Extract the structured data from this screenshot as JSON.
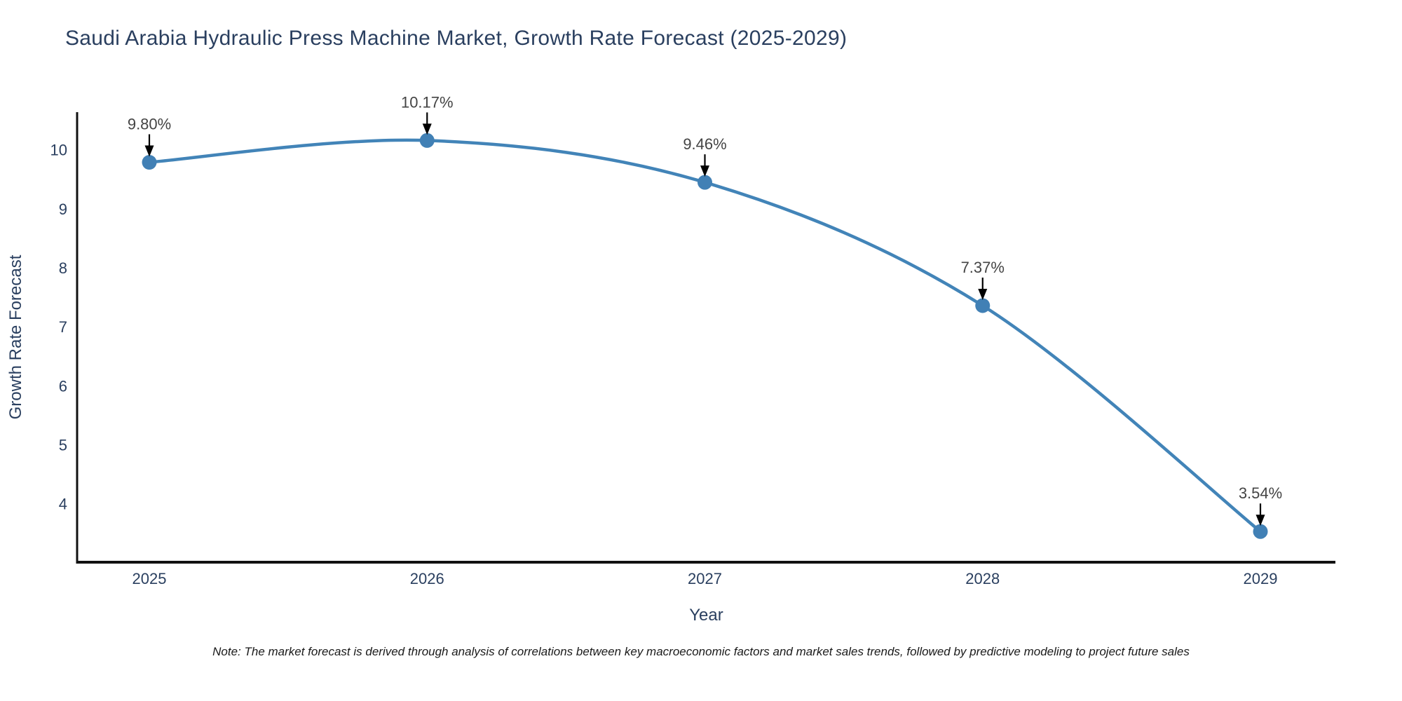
{
  "title": "Saudi Arabia Hydraulic Press Machine Market, Growth Rate Forecast (2025-2029)",
  "note": "Note: The market forecast is derived through analysis of correlations between key macroeconomic factors and market sales trends, followed by predictive modeling to project future sales",
  "chart_data": {
    "type": "line",
    "x": [
      2025,
      2026,
      2027,
      2028,
      2029
    ],
    "series": [
      {
        "name": "Growth Rate Forecast",
        "values": [
          9.8,
          10.17,
          9.46,
          7.37,
          3.54
        ]
      }
    ],
    "point_labels": [
      "9.80%",
      "10.17%",
      "9.46%",
      "7.37%",
      "3.54%"
    ],
    "title": "Saudi Arabia Hydraulic Press Machine Market, Growth Rate Forecast (2025-2029)",
    "xlabel": "Year",
    "ylabel": "Growth Rate Forecast",
    "yticks": [
      4,
      5,
      6,
      7,
      8,
      9,
      10
    ],
    "xlim": [
      2024.74,
      2029.27
    ],
    "ylim": [
      3.02,
      10.65
    ],
    "grid": false,
    "legend": false,
    "line_shape": "spline",
    "colors": {
      "line": "#4284b8",
      "marker": "#4180b5",
      "axis_line": "#111111",
      "tick_label": "#2a3f5f",
      "axis_title": "#2a3f5f",
      "title": "#2a3f5f",
      "annotation_text": "#444444",
      "arrow": "#000000",
      "background": "#ffffff"
    }
  }
}
